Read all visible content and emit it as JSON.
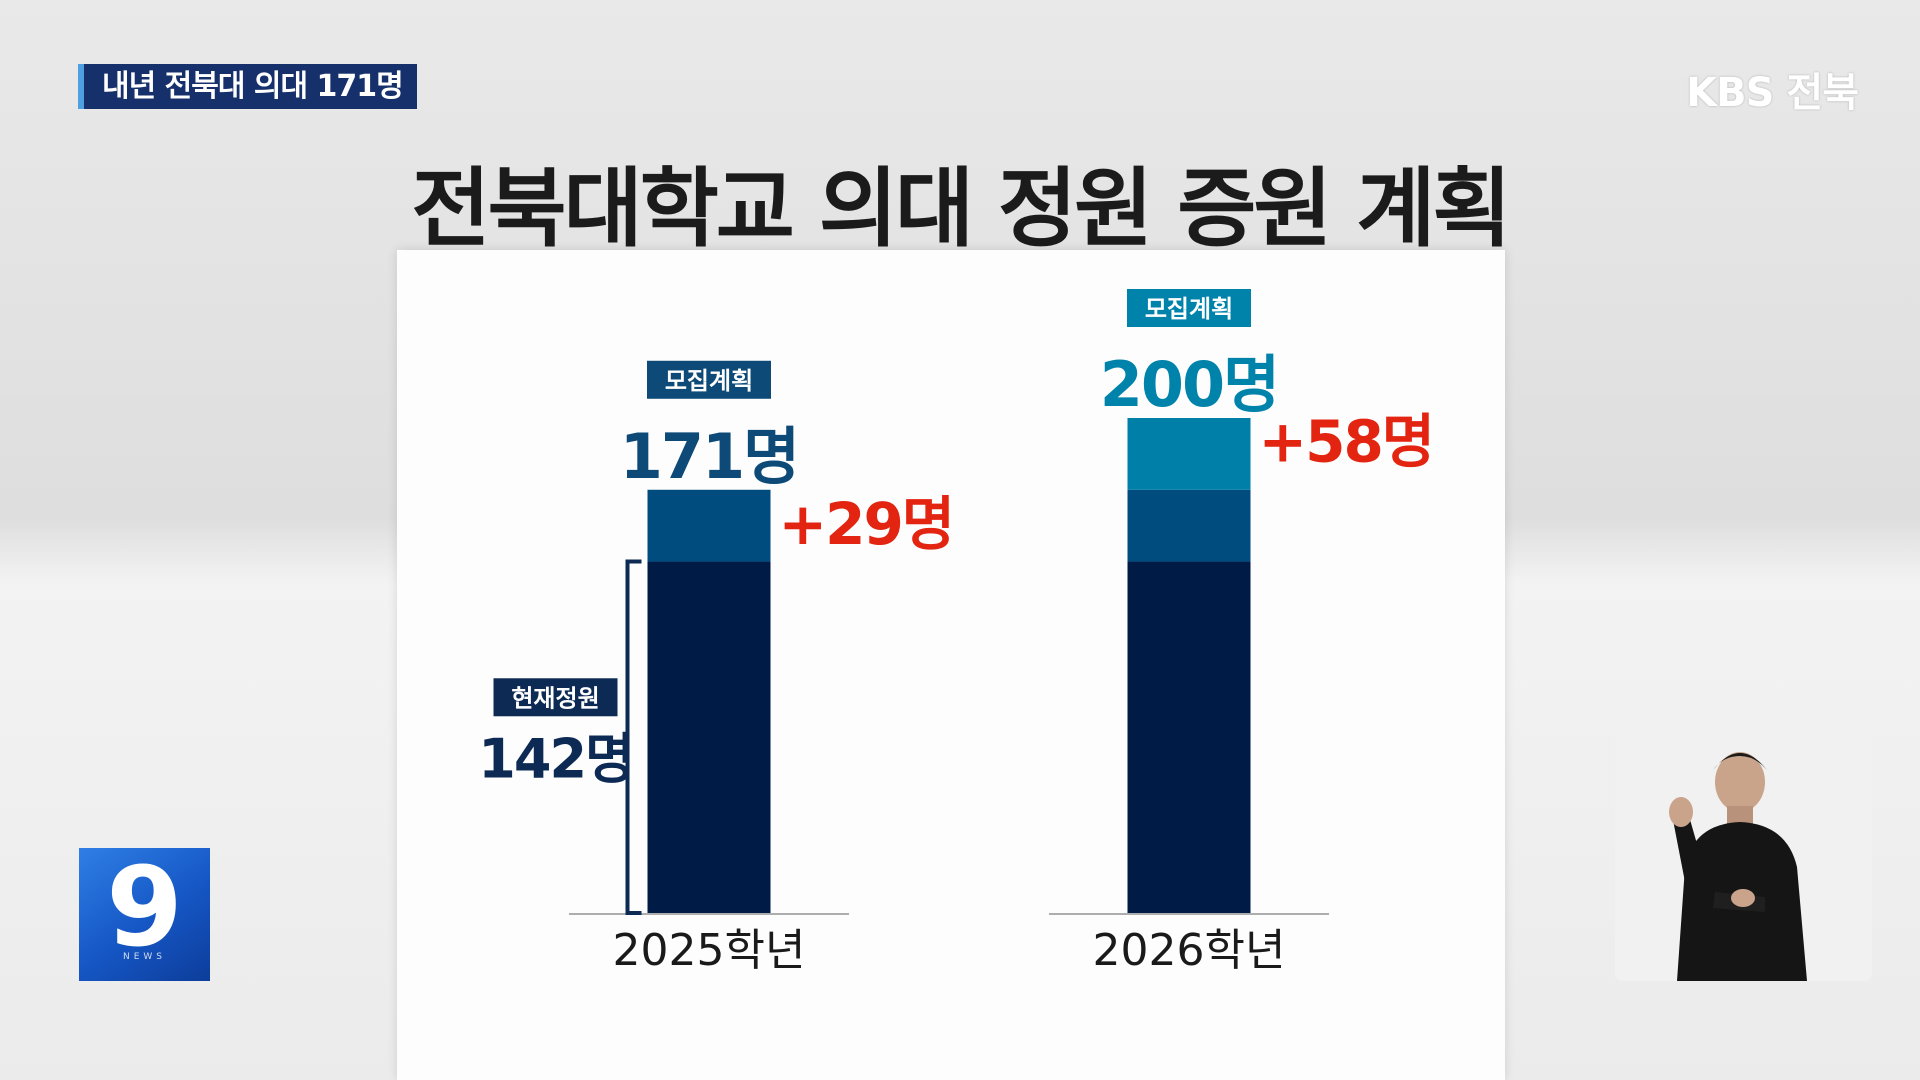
{
  "caption": "내년 전북대 의대 171명",
  "logo": "KBS 전북",
  "title": "전북대학교 의대 정원 증원 계획",
  "news_badge": {
    "digit": "9",
    "word": "NEWS"
  },
  "colors": {
    "current": "#001c46",
    "increase": "#004c7e",
    "increase_2026_top": "#007fa8",
    "label_2025": "#0d4a78",
    "label_2026": "#0083aa",
    "label_current": "#0d2a55",
    "delta": "#e22410"
  },
  "chart_data": {
    "type": "bar",
    "stacked": true,
    "categories": [
      "2025학년",
      "2026학년"
    ],
    "series": [
      {
        "name": "현재정원",
        "values": [
          142,
          142
        ]
      },
      {
        "name": "증원",
        "values": [
          29,
          58
        ]
      }
    ],
    "totals": [
      171,
      200
    ],
    "total_label": "모집계획",
    "total_texts": [
      "171명",
      "200명"
    ],
    "increase_texts": [
      "+29명",
      "+58명"
    ],
    "current_label": "현재정원",
    "current_text": "142명",
    "ylim": [
      0,
      200
    ],
    "grid": false
  }
}
